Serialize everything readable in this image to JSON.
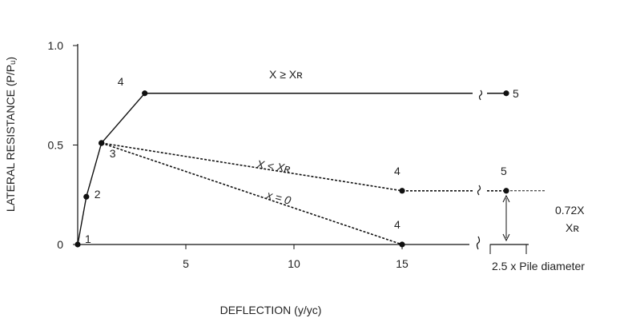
{
  "chart_data": {
    "type": "line",
    "title": "",
    "xlabel": "DEFLECTION (y/yᴄ)",
    "ylabel": "LATERAL RESISTANCE (P/Pᵤ)",
    "xlim": [
      0,
      18
    ],
    "ylim": [
      0,
      1.0
    ],
    "x_ticks": [
      {
        "value": 5,
        "label": "5"
      },
      {
        "value": 10,
        "label": "10"
      },
      {
        "value": 15,
        "label": "15"
      }
    ],
    "y_ticks": [
      {
        "value": 0,
        "label": "0"
      },
      {
        "value": 0.5,
        "label": "0.5"
      },
      {
        "value": 1.0,
        "label": "1.0"
      }
    ],
    "grid": false,
    "series": [
      {
        "name": "X ≥ Xʀ",
        "style": "solid",
        "points": [
          {
            "x": 0,
            "y": 0,
            "label": "1"
          },
          {
            "x": 0.4,
            "y": 0.24,
            "label": "2"
          },
          {
            "x": 1.1,
            "y": 0.51,
            "label": "3"
          },
          {
            "x": 3.1,
            "y": 0.76,
            "label": "4"
          },
          {
            "x": 18,
            "y": 0.76,
            "label": "5"
          }
        ]
      },
      {
        "name": "X < Xʀ",
        "style": "dashed",
        "points": [
          {
            "x": 1.1,
            "y": 0.51,
            "label": ""
          },
          {
            "x": 15,
            "y": 0.27,
            "label": "4"
          },
          {
            "x": 18,
            "y": 0.27,
            "label": "5"
          }
        ]
      },
      {
        "name": "x = 0",
        "style": "dashed",
        "points": [
          {
            "x": 1.1,
            "y": 0.51,
            "label": ""
          },
          {
            "x": 15,
            "y": 0,
            "label": "4"
          }
        ]
      }
    ],
    "annotations": {
      "ratio_label_line1": "0.72X",
      "ratio_label_line2": "Xʀ",
      "pile_label": "2.5 x Pile diameter",
      "break_mark": "≈"
    }
  }
}
